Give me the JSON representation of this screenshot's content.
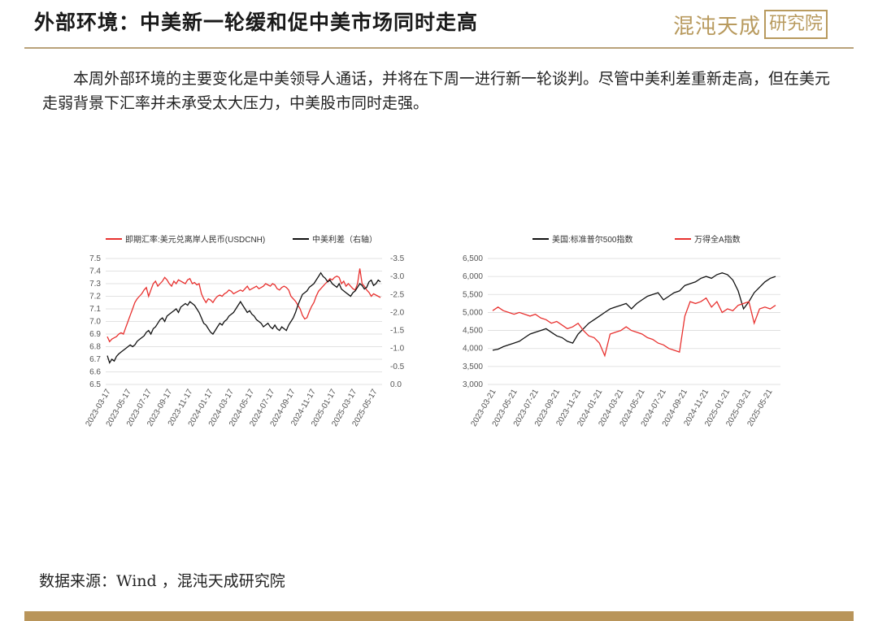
{
  "title": "外部环境：中美新一轮缓和促中美市场同时走高",
  "logo": {
    "text": "混沌天成",
    "box": "研究院"
  },
  "intro": "本周外部环境的主要变化是中美领导人通话，并将在下周一进行新一轮谈判。尽管中美利差重新走高，但在美元走弱背景下汇率并未承受太大压力，中美股市同时走强。",
  "source": "数据来源：Wind ，混沌天成研究院",
  "colors": {
    "red": "#e8312f",
    "black": "#111111",
    "gold": "#b9955a"
  },
  "chart_data": [
    {
      "type": "line",
      "series": [
        {
          "name": "即期汇率:美元兑离岸人民币(USDCNH)",
          "color": "#e8312f",
          "axis": "left",
          "values": [
            6.88,
            6.84,
            6.86,
            6.87,
            6.88,
            6.9,
            6.91,
            6.9,
            6.95,
            7.0,
            7.05,
            7.1,
            7.15,
            7.18,
            7.2,
            7.22,
            7.25,
            7.27,
            7.2,
            7.25,
            7.3,
            7.32,
            7.28,
            7.3,
            7.32,
            7.35,
            7.33,
            7.3,
            7.28,
            7.32,
            7.3,
            7.33,
            7.32,
            7.31,
            7.3,
            7.33,
            7.34,
            7.3,
            7.31,
            7.29,
            7.3,
            7.22,
            7.18,
            7.15,
            7.18,
            7.17,
            7.15,
            7.18,
            7.2,
            7.21,
            7.2,
            7.22,
            7.23,
            7.25,
            7.24,
            7.22,
            7.23,
            7.24,
            7.25,
            7.24,
            7.26,
            7.28,
            7.25,
            7.26,
            7.27,
            7.28,
            7.26,
            7.27,
            7.28,
            7.3,
            7.29,
            7.28,
            7.3,
            7.29,
            7.26,
            7.25,
            7.27,
            7.28,
            7.27,
            7.25,
            7.2,
            7.18,
            7.16,
            7.13,
            7.1,
            7.05,
            7.02,
            7.03,
            7.08,
            7.12,
            7.15,
            7.2,
            7.24,
            7.26,
            7.28,
            7.3,
            7.32,
            7.34,
            7.33,
            7.35,
            7.36,
            7.35,
            7.3,
            7.32,
            7.28,
            7.3,
            7.28,
            7.26,
            7.25,
            7.3,
            7.42,
            7.3,
            7.28,
            7.25,
            7.23,
            7.2,
            7.22,
            7.21,
            7.2,
            7.19
          ]
        },
        {
          "name": "中美利差（右轴）",
          "color": "#111111",
          "axis": "right",
          "values": [
            0.8,
            0.6,
            0.7,
            0.65,
            0.78,
            0.85,
            0.9,
            0.95,
            1.0,
            1.05,
            1.1,
            1.05,
            1.1,
            1.2,
            1.25,
            1.3,
            1.35,
            1.45,
            1.5,
            1.4,
            1.55,
            1.6,
            1.7,
            1.8,
            1.85,
            1.75,
            1.9,
            1.95,
            2.0,
            2.05,
            2.1,
            2.0,
            2.15,
            2.2,
            2.25,
            2.2,
            2.3,
            2.25,
            2.2,
            2.1,
            2.0,
            1.85,
            1.7,
            1.65,
            1.55,
            1.45,
            1.4,
            1.5,
            1.6,
            1.7,
            1.65,
            1.75,
            1.8,
            1.9,
            1.95,
            2.0,
            2.1,
            2.2,
            2.3,
            2.2,
            2.1,
            2.0,
            2.05,
            1.95,
            1.9,
            1.8,
            1.75,
            1.7,
            1.6,
            1.65,
            1.7,
            1.6,
            1.55,
            1.65,
            1.55,
            1.5,
            1.6,
            1.55,
            1.5,
            1.65,
            1.75,
            1.85,
            2.0,
            2.2,
            2.35,
            2.5,
            2.55,
            2.6,
            2.7,
            2.75,
            2.8,
            2.9,
            3.0,
            3.1,
            3.0,
            2.95,
            2.85,
            2.9,
            2.8,
            2.75,
            2.7,
            2.8,
            2.65,
            2.6,
            2.55,
            2.5,
            2.45,
            2.55,
            2.6,
            2.7,
            2.8,
            2.75,
            2.65,
            2.7,
            2.85,
            2.9,
            2.75,
            2.8,
            2.9,
            2.85
          ]
        }
      ],
      "x_ticks": [
        "2023-03-17",
        "2023-05-17",
        "2023-07-17",
        "2023-09-17",
        "2023-11-17",
        "2024-01-17",
        "2024-03-17",
        "2024-05-17",
        "2024-07-17",
        "2024-09-17",
        "2024-11-17",
        "2025-01-17",
        "2025-03-17",
        "2025-05-17"
      ],
      "y_left": {
        "min": 6.5,
        "max": 7.5,
        "ticks": [
          "6.5",
          "6.6",
          "6.7",
          "6.8",
          "6.9",
          "7.0",
          "7.1",
          "7.2",
          "7.3",
          "7.4",
          "7.5"
        ]
      },
      "y_right": {
        "min": 0,
        "max": 3.5,
        "ticks": [
          "0.0",
          "-0.5",
          "-1.0",
          "-1.5",
          "-2.0",
          "-2.5",
          "-3.0",
          "-3.5"
        ]
      },
      "grid": true,
      "legend": "top"
    },
    {
      "type": "line",
      "series": [
        {
          "name": "美国:标准普尔500指数",
          "color": "#111111",
          "values": [
            3950,
            3980,
            4050,
            4100,
            4150,
            4200,
            4300,
            4400,
            4450,
            4500,
            4550,
            4450,
            4350,
            4300,
            4200,
            4150,
            4400,
            4550,
            4700,
            4800,
            4900,
            5000,
            5100,
            5150,
            5200,
            5250,
            5100,
            5250,
            5350,
            5450,
            5500,
            5550,
            5350,
            5450,
            5550,
            5600,
            5750,
            5800,
            5850,
            5950,
            6000,
            5950,
            6050,
            6100,
            6050,
            5900,
            5600,
            5100,
            5300,
            5550,
            5700,
            5850,
            5950,
            6000
          ]
        },
        {
          "name": "万得全A指数",
          "color": "#e8312f",
          "values": [
            5050,
            5150,
            5050,
            5000,
            4950,
            5000,
            4950,
            4900,
            4950,
            4850,
            4800,
            4700,
            4750,
            4650,
            4550,
            4600,
            4700,
            4500,
            4350,
            4300,
            4150,
            3800,
            4400,
            4450,
            4500,
            4600,
            4500,
            4450,
            4400,
            4300,
            4250,
            4150,
            4100,
            4000,
            3950,
            3900,
            4900,
            5300,
            5250,
            5300,
            5400,
            5150,
            5300,
            5000,
            5100,
            5050,
            5200,
            5250,
            5300,
            4700,
            5100,
            5150,
            5100,
            5200
          ]
        }
      ],
      "x_ticks": [
        "2023-03-21",
        "2023-05-21",
        "2023-07-21",
        "2023-09-21",
        "2023-11-21",
        "2024-01-21",
        "2024-03-21",
        "2024-05-21",
        "2024-07-21",
        "2024-09-21",
        "2024-11-21",
        "2025-01-21",
        "2025-03-21",
        "2025-05-21"
      ],
      "y": {
        "min": 3000,
        "max": 6500,
        "ticks": [
          "3,000",
          "3,500",
          "4,000",
          "4,500",
          "5,000",
          "5,500",
          "6,000",
          "6,500"
        ]
      },
      "grid": true,
      "legend": "top"
    }
  ]
}
